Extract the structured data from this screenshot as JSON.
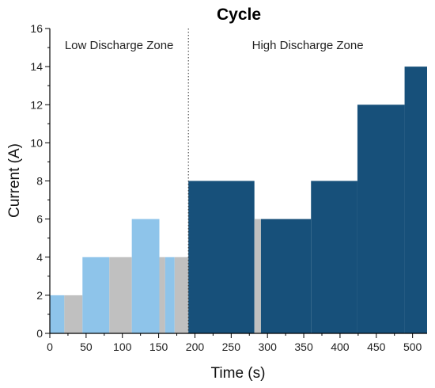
{
  "chart_data": {
    "type": "bar",
    "title": "Cycle",
    "xlabel": "Time (s)",
    "ylabel": "Current (A)",
    "xlim": [
      0,
      520
    ],
    "ylim": [
      0,
      16
    ],
    "x_ticks": [
      0,
      50,
      100,
      150,
      200,
      250,
      300,
      350,
      400,
      450,
      500
    ],
    "y_ticks": [
      0,
      2,
      4,
      6,
      8,
      10,
      12,
      14,
      16
    ],
    "grid": false,
    "colors": {
      "low_discharge": "#8ec4ea",
      "rest": "#c0c0c0",
      "high_discharge": "#17507a"
    },
    "zones": [
      {
        "label": "Low Discharge Zone",
        "start": 0,
        "end": 191
      },
      {
        "label": "High Discharge Zone",
        "start": 191,
        "end": 520
      }
    ],
    "zone_boundary": 191,
    "segments": [
      {
        "start": 0,
        "end": 20,
        "current": 2,
        "kind": "low_discharge"
      },
      {
        "start": 20,
        "end": 45,
        "current": 2,
        "kind": "rest"
      },
      {
        "start": 45,
        "end": 82,
        "current": 4,
        "kind": "low_discharge"
      },
      {
        "start": 82,
        "end": 113,
        "current": 4,
        "kind": "rest"
      },
      {
        "start": 113,
        "end": 151,
        "current": 6,
        "kind": "low_discharge"
      },
      {
        "start": 151,
        "end": 159,
        "current": 4,
        "kind": "rest"
      },
      {
        "start": 159,
        "end": 172,
        "current": 4,
        "kind": "low_discharge"
      },
      {
        "start": 172,
        "end": 191,
        "current": 4,
        "kind": "rest"
      },
      {
        "start": 191,
        "end": 282,
        "current": 8,
        "kind": "high_discharge"
      },
      {
        "start": 282,
        "end": 291,
        "current": 6,
        "kind": "rest"
      },
      {
        "start": 291,
        "end": 360,
        "current": 6,
        "kind": "high_discharge"
      },
      {
        "start": 360,
        "end": 424,
        "current": 8,
        "kind": "high_discharge"
      },
      {
        "start": 424,
        "end": 489,
        "current": 12,
        "kind": "high_discharge"
      },
      {
        "start": 489,
        "end": 520,
        "current": 14,
        "kind": "high_discharge"
      }
    ]
  }
}
